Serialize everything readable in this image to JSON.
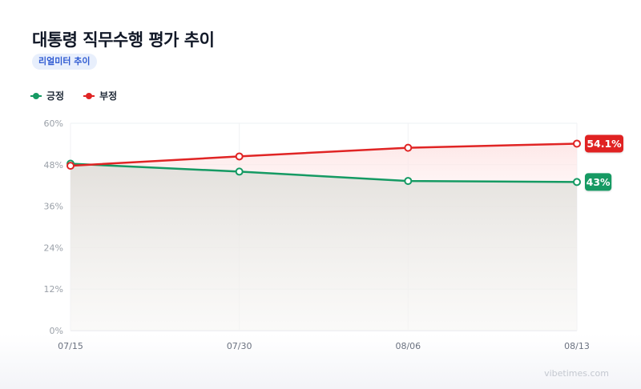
{
  "header": {
    "title": "대통령 직무수행 평가 추이",
    "badge": "리얼미터 추이"
  },
  "watermark": "vibetimes.com",
  "colors": {
    "positive": "#159a63",
    "negative": "#e02424",
    "grid": "#eef0f3",
    "tick_text": "#9aa0a8"
  },
  "chart_data": {
    "type": "line",
    "title": "대통령 직무수행 평가 추이",
    "categories": [
      "07/15",
      "07/30",
      "08/06",
      "08/13"
    ],
    "series": [
      {
        "name": "긍정",
        "values": [
          48.3,
          46.0,
          43.3,
          43.0
        ],
        "end_label": "43%"
      },
      {
        "name": "부정",
        "values": [
          47.7,
          50.4,
          52.9,
          54.1
        ],
        "end_label": "54.1%"
      }
    ],
    "ylim": [
      0,
      60
    ],
    "yticks": [
      0,
      12,
      24,
      36,
      48,
      60
    ],
    "ytick_labels": [
      "0%",
      "12%",
      "24%",
      "36%",
      "48%",
      "60%"
    ],
    "xlabel": "",
    "ylabel": "",
    "grid": true,
    "legend": "top-left"
  }
}
